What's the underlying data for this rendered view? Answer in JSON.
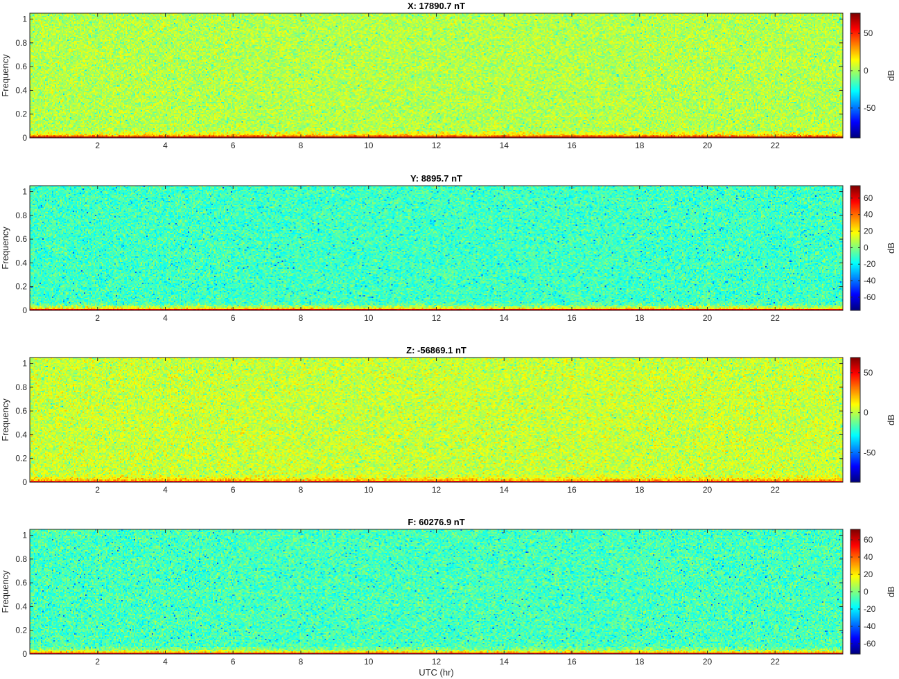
{
  "figure": {
    "xlabel": "UTC (hr)"
  },
  "chart_data": [
    {
      "type": "heatmap",
      "title": "X: 17890.7 nT",
      "xlabel": "",
      "ylabel": "Frequency",
      "colorbar_label": "dB",
      "x_ticks": [
        2,
        4,
        6,
        8,
        10,
        12,
        14,
        16,
        18,
        20,
        22
      ],
      "y_ticks": [
        0,
        0.2,
        0.4,
        0.6,
        0.8,
        1
      ],
      "xlim": [
        0,
        24
      ],
      "ylim": [
        0,
        1.05
      ],
      "clim": [
        -90,
        77
      ],
      "colorbar_ticks": [
        50,
        0,
        -50
      ],
      "colormap": "jet",
      "background_level_db": 2,
      "low_freq_level_db": 68
    },
    {
      "type": "heatmap",
      "title": "Y: 8895.7 nT",
      "xlabel": "",
      "ylabel": "Frequency",
      "colorbar_label": "dB",
      "x_ticks": [
        2,
        4,
        6,
        8,
        10,
        12,
        14,
        16,
        18,
        20,
        22
      ],
      "y_ticks": [
        0,
        0.2,
        0.4,
        0.6,
        0.8,
        1
      ],
      "xlim": [
        0,
        24
      ],
      "ylim": [
        0,
        1.05
      ],
      "clim": [
        -76,
        75
      ],
      "colorbar_ticks": [
        60,
        40,
        20,
        0,
        -20,
        -40,
        -60
      ],
      "colormap": "jet",
      "background_level_db": -10,
      "low_freq_level_db": 62
    },
    {
      "type": "heatmap",
      "title": "Z: -56869.1 nT",
      "xlabel": "",
      "ylabel": "Frequency",
      "colorbar_label": "dB",
      "x_ticks": [
        2,
        4,
        6,
        8,
        10,
        12,
        14,
        16,
        18,
        20,
        22
      ],
      "y_ticks": [
        0,
        0.2,
        0.4,
        0.6,
        0.8,
        1
      ],
      "xlim": [
        0,
        24
      ],
      "ylim": [
        0,
        1.05
      ],
      "clim": [
        -87,
        69
      ],
      "colorbar_ticks": [
        50,
        0,
        -50
      ],
      "colormap": "jet",
      "background_level_db": 2,
      "low_freq_level_db": 48
    },
    {
      "type": "heatmap",
      "title": "F: 60276.9 nT",
      "xlabel": "UTC (hr)",
      "ylabel": "Frequency",
      "colorbar_label": "dB",
      "x_ticks": [
        2,
        4,
        6,
        8,
        10,
        12,
        14,
        16,
        18,
        20,
        22
      ],
      "y_ticks": [
        0,
        0.2,
        0.4,
        0.6,
        0.8,
        1
      ],
      "xlim": [
        0,
        24
      ],
      "ylim": [
        0,
        1.05
      ],
      "clim": [
        -72,
        72
      ],
      "colorbar_ticks": [
        60,
        40,
        20,
        0,
        -20,
        -40,
        -60
      ],
      "colormap": "jet",
      "background_level_db": -8,
      "low_freq_level_db": 58
    }
  ]
}
